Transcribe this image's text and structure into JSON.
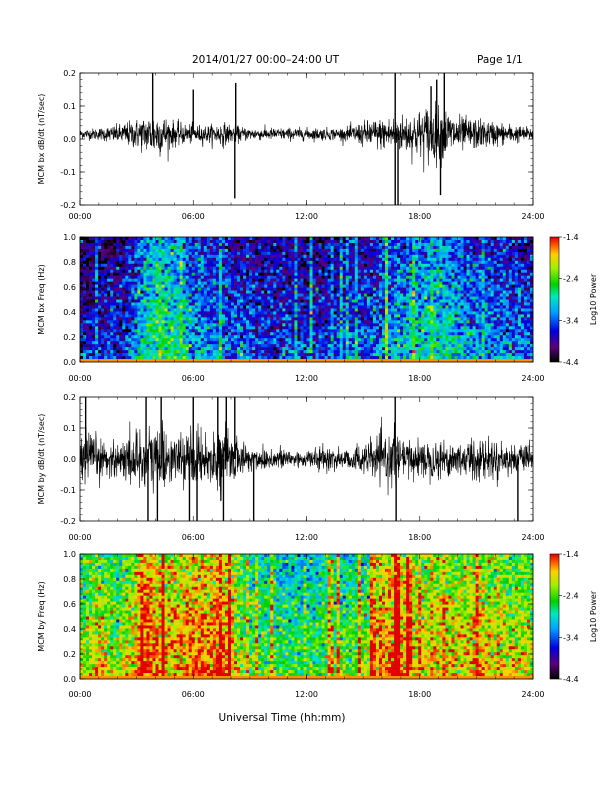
{
  "header": {
    "title": "2014/01/27  00:00–24:00 UT",
    "page": "Page 1/1"
  },
  "chart_data": [
    {
      "type": "line",
      "id": "bx-dbdt",
      "ylabel": "MCM bx dB/dt (nT/sec)",
      "ylim": [
        -0.2,
        0.2
      ],
      "yticks": [
        "0.2",
        "0.1",
        "0.0",
        "-0.1",
        "-0.2"
      ],
      "xticks": [
        "00:00",
        "06:00",
        "12:00",
        "18:00",
        "24:00"
      ],
      "xlim": [
        0,
        24
      ],
      "series": [
        {
          "x": [
            0,
            1,
            2,
            3,
            3.5,
            4,
            4.5,
            5,
            6,
            7,
            7.5,
            8,
            9,
            10,
            11,
            12,
            13,
            14,
            15,
            15.5,
            16,
            16.5,
            17,
            17.5,
            18,
            18.5,
            19,
            19.5,
            20,
            21,
            22,
            23,
            24
          ],
          "envelope": [
            0.015,
            0.02,
            0.03,
            0.05,
            0.06,
            0.08,
            0.06,
            0.04,
            0.03,
            0.03,
            0.04,
            0.03,
            0.02,
            0.02,
            0.02,
            0.02,
            0.02,
            0.02,
            0.04,
            0.05,
            0.05,
            0.06,
            0.06,
            0.07,
            0.08,
            0.1,
            0.09,
            0.08,
            0.06,
            0.05,
            0.04,
            0.03,
            0.02
          ]
        }
      ],
      "spikes": [
        {
          "t": 3.85,
          "v": 0.2
        },
        {
          "t": 6.0,
          "v": 0.15
        },
        {
          "t": 8.2,
          "v": -0.18
        },
        {
          "t": 8.25,
          "v": 0.17
        },
        {
          "t": 16.7,
          "v": -0.2
        },
        {
          "t": 16.7,
          "v": 0.2
        },
        {
          "t": 16.85,
          "v": -0.2
        },
        {
          "t": 19.1,
          "v": -0.17
        },
        {
          "t": 18.9,
          "v": 0.18
        },
        {
          "t": 19.3,
          "v": 0.2
        },
        {
          "t": 18.6,
          "v": 0.16
        }
      ]
    },
    {
      "type": "heatmap",
      "id": "bx-freq",
      "ylabel": "MCM bx Freq (Hz)",
      "ylim": [
        0.0,
        1.0
      ],
      "yticks": [
        "1.0",
        "0.8",
        "0.6",
        "0.4",
        "0.2",
        "0.0"
      ],
      "xticks": [
        "00:00",
        "06:00",
        "12:00",
        "18:00",
        "24:00"
      ],
      "xlim": [
        0,
        24
      ],
      "colorbar": {
        "label": "Log10 Power",
        "ticks": [
          "-1.4",
          "-2.4",
          "-3.4",
          "-4.4"
        ],
        "range": [
          -4.4,
          -1.4
        ]
      },
      "activity": [
        {
          "t": 0,
          "level": -4.0
        },
        {
          "t": 2.5,
          "level": -3.7
        },
        {
          "t": 3.5,
          "level": -3.0
        },
        {
          "t": 4.5,
          "level": -2.8
        },
        {
          "t": 6,
          "level": -3.3
        },
        {
          "t": 8,
          "level": -3.6
        },
        {
          "t": 12,
          "level": -3.8
        },
        {
          "t": 15,
          "level": -3.6
        },
        {
          "t": 17.5,
          "level": -3.2
        },
        {
          "t": 19,
          "level": -3.0
        },
        {
          "t": 21,
          "level": -3.4
        },
        {
          "t": 24,
          "level": -3.6
        }
      ]
    },
    {
      "type": "line",
      "id": "by-dbdt",
      "ylabel": "MCM by dB/dt (nT/sec)",
      "ylim": [
        -0.2,
        0.2
      ],
      "yticks": [
        "0.2",
        "0.1",
        "0.0",
        "-0.1",
        "-0.2"
      ],
      "xticks": [
        "00:00",
        "06:00",
        "12:00",
        "18:00",
        "24:00"
      ],
      "xlim": [
        0,
        24
      ],
      "series": [
        {
          "x": [
            0,
            0.5,
            1,
            2,
            3,
            3.5,
            4,
            4.5,
            5,
            6,
            6.5,
            7,
            7.5,
            8,
            9,
            10,
            11,
            12,
            13,
            14,
            15,
            16,
            16.5,
            17,
            17.5,
            18,
            19,
            20,
            21,
            22,
            23,
            24
          ],
          "envelope": [
            0.08,
            0.1,
            0.07,
            0.06,
            0.1,
            0.12,
            0.14,
            0.1,
            0.07,
            0.1,
            0.08,
            0.07,
            0.12,
            0.08,
            0.05,
            0.04,
            0.04,
            0.03,
            0.04,
            0.04,
            0.05,
            0.08,
            0.1,
            0.07,
            0.07,
            0.06,
            0.07,
            0.06,
            0.08,
            0.06,
            0.05,
            0.04
          ]
        }
      ],
      "spikes": [
        {
          "t": 0.3,
          "v": 0.2
        },
        {
          "t": 3.5,
          "v": 0.2
        },
        {
          "t": 3.6,
          "v": -0.2
        },
        {
          "t": 4.1,
          "v": -0.2
        },
        {
          "t": 4.3,
          "v": 0.2
        },
        {
          "t": 5.8,
          "v": -0.2
        },
        {
          "t": 6.0,
          "v": 0.2
        },
        {
          "t": 6.2,
          "v": -0.2
        },
        {
          "t": 7.3,
          "v": 0.2
        },
        {
          "t": 7.6,
          "v": -0.2
        },
        {
          "t": 7.75,
          "v": 0.2
        },
        {
          "t": 9.2,
          "v": -0.2
        },
        {
          "t": 16.7,
          "v": 0.2
        },
        {
          "t": 16.75,
          "v": -0.2
        },
        {
          "t": 23.2,
          "v": -0.2
        },
        {
          "t": 8.2,
          "v": 0.2
        }
      ]
    },
    {
      "type": "heatmap",
      "id": "by-freq",
      "ylabel": "MCM by Freq (Hz)",
      "ylim": [
        0.0,
        1.0
      ],
      "yticks": [
        "1.0",
        "0.8",
        "0.6",
        "0.4",
        "0.2",
        "0.0"
      ],
      "xticks": [
        "00:00",
        "06:00",
        "12:00",
        "18:00",
        "24:00"
      ],
      "xlim": [
        0,
        24
      ],
      "colorbar": {
        "label": "Log10 Power",
        "ticks": [
          "-1.4",
          "-2.4",
          "-3.4",
          "-4.4"
        ],
        "range": [
          -4.4,
          -1.4
        ]
      },
      "activity": [
        {
          "t": 0,
          "level": -2.4
        },
        {
          "t": 1,
          "level": -2.1
        },
        {
          "t": 2,
          "level": -2.5
        },
        {
          "t": 3.5,
          "level": -1.6
        },
        {
          "t": 4.5,
          "level": -2.0
        },
        {
          "t": 6,
          "level": -1.8
        },
        {
          "t": 7.5,
          "level": -1.7
        },
        {
          "t": 9,
          "level": -2.6
        },
        {
          "t": 12,
          "level": -2.8
        },
        {
          "t": 15,
          "level": -2.5
        },
        {
          "t": 16.5,
          "level": -1.7
        },
        {
          "t": 18,
          "level": -2.2
        },
        {
          "t": 21,
          "level": -2.0
        },
        {
          "t": 24,
          "level": -2.3
        }
      ]
    }
  ],
  "footer": {
    "xlabel": "Universal Time (hh:mm)"
  }
}
